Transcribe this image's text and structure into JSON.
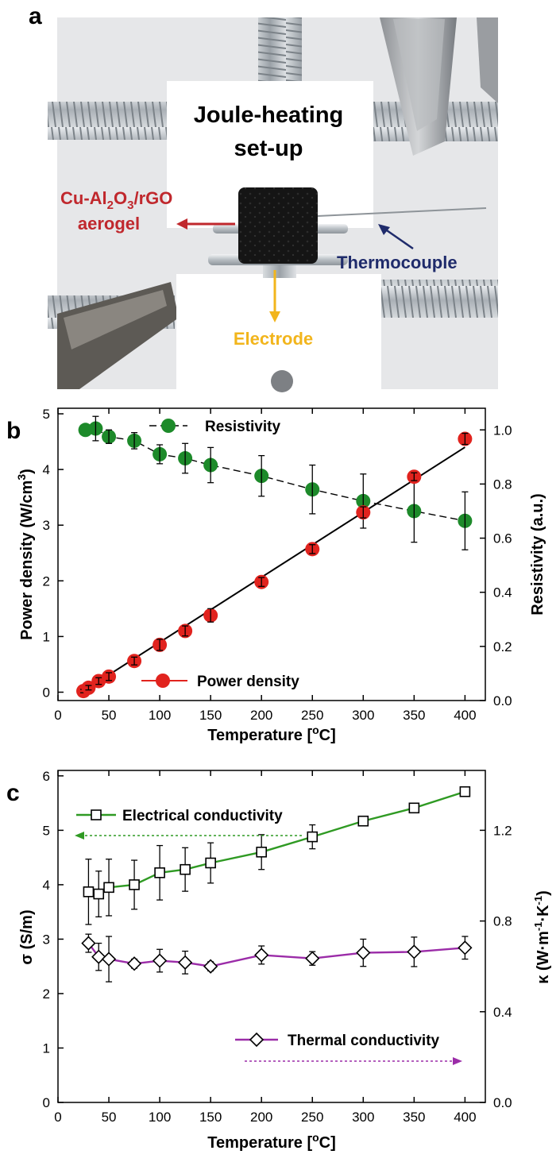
{
  "panel_a": {
    "label": "a",
    "title_line1": "Joule-heating",
    "title_line2": "set-up",
    "aerogel_line1_parts": [
      "Cu-Al",
      "2",
      "O",
      "3",
      "/rGO"
    ],
    "aerogel_line2": "aerogel",
    "thermocouple": "Thermocouple",
    "electrode": "Electrode",
    "colors": {
      "aerogel": "#c0282d",
      "thermocouple": "#1f2b6b",
      "electrode": "#f2b51c"
    }
  },
  "chart_data": [
    {
      "panel": "b",
      "type": "scatter",
      "xlabel": "Temperature [°C]",
      "xlabel_parts": [
        "Temperature [",
        "o",
        "C]"
      ],
      "xlim": [
        0,
        420
      ],
      "xticks": [
        0,
        50,
        100,
        150,
        200,
        250,
        300,
        350,
        400
      ],
      "left_axis": {
        "label": "Power density (W/cm3)",
        "label_parts": [
          "Power density (W/cm",
          "3",
          ")"
        ],
        "ylim": [
          -0.15,
          5.1
        ],
        "ticks": [
          0,
          1,
          2,
          3,
          4,
          5
        ]
      },
      "right_axis": {
        "label": "Resistivity (a.u.)",
        "ylim": [
          0.0,
          1.08
        ],
        "ticks": [
          0.0,
          0.2,
          0.4,
          0.6,
          0.8,
          1.0
        ]
      },
      "series": [
        {
          "name": "Resistivity",
          "axis": "right",
          "marker": "circle",
          "color": "#1d8a2a",
          "connect": "dashed",
          "x": [
            27,
            37,
            50,
            75,
            100,
            125,
            150,
            200,
            250,
            300,
            350,
            400
          ],
          "y": [
            1.0,
            1.005,
            0.975,
            0.96,
            0.91,
            0.895,
            0.87,
            0.83,
            0.78,
            0.737,
            0.7,
            0.664
          ],
          "err": [
            0.0,
            0.045,
            0.025,
            0.03,
            0.035,
            0.055,
            0.065,
            0.075,
            0.09,
            0.1,
            0.115,
            0.107
          ]
        },
        {
          "name": "Power density",
          "axis": "left",
          "marker": "circle",
          "color": "#e1231e",
          "connect": "fit",
          "x": [
            25,
            30,
            40,
            50,
            75,
            100,
            125,
            150,
            200,
            250,
            300,
            350,
            400
          ],
          "y": [
            0.02,
            0.08,
            0.2,
            0.28,
            0.56,
            0.85,
            1.1,
            1.38,
            1.98,
            2.57,
            3.23,
            3.87,
            4.55
          ],
          "err": [
            0.03,
            0.04,
            0.06,
            0.07,
            0.07,
            0.1,
            0.09,
            0.12,
            0.08,
            0.08,
            0.1,
            0.07,
            0.1
          ]
        }
      ],
      "fit_line": {
        "x": [
          25,
          400
        ],
        "y": [
          0.02,
          4.4
        ]
      },
      "legend": [
        "Resistivity",
        "Power density"
      ]
    },
    {
      "panel": "c",
      "type": "line",
      "xlabel": "Temperature [°C]",
      "xlabel_parts": [
        "Temperature [",
        "o",
        "C]"
      ],
      "xlim": [
        0,
        420
      ],
      "xticks": [
        0,
        50,
        100,
        150,
        200,
        250,
        300,
        350,
        400
      ],
      "left_axis": {
        "label": "σ (S/m)",
        "ylim": [
          0,
          6.1
        ],
        "ticks": [
          0,
          1,
          2,
          3,
          4,
          5,
          6
        ]
      },
      "right_axis": {
        "label": "κ (W·m-1·K-1)",
        "label_parts": [
          "κ (W·m",
          "-1",
          "·K",
          "-1",
          ")"
        ],
        "ylim": [
          0.0,
          1.464
        ],
        "ticks": [
          0.0,
          0.4,
          0.8,
          1.2
        ],
        "tick_labels": [
          "0.0",
          "0.4",
          "0.8",
          "1.2"
        ]
      },
      "series": [
        {
          "name": "Electrical conductivity",
          "axis": "left",
          "marker": "square",
          "color": "#2f9a23",
          "x": [
            30,
            40,
            50,
            75,
            100,
            125,
            150,
            200,
            250,
            300,
            350,
            400
          ],
          "y": [
            3.87,
            3.83,
            3.95,
            4.0,
            4.22,
            4.28,
            4.4,
            4.6,
            4.88,
            5.17,
            5.41,
            5.71
          ],
          "err": [
            0.6,
            0.42,
            0.52,
            0.45,
            0.5,
            0.4,
            0.37,
            0.32,
            0.22,
            0.08,
            0.04,
            0.04
          ]
        },
        {
          "name": "Thermal conductivity",
          "axis": "right",
          "marker": "diamond",
          "color": "#9b2ca8",
          "x": [
            30,
            40,
            50,
            75,
            100,
            125,
            150,
            200,
            250,
            300,
            350,
            400
          ],
          "y": [
            0.702,
            0.642,
            0.632,
            0.612,
            0.625,
            0.617,
            0.6,
            0.65,
            0.635,
            0.66,
            0.664,
            0.682
          ],
          "err": [
            0.04,
            0.06,
            0.1,
            0.02,
            0.05,
            0.05,
            0.02,
            0.04,
            0.03,
            0.06,
            0.065,
            0.05
          ]
        }
      ],
      "legend": [
        "Electrical conductivity",
        "Thermal conductivity"
      ]
    }
  ]
}
